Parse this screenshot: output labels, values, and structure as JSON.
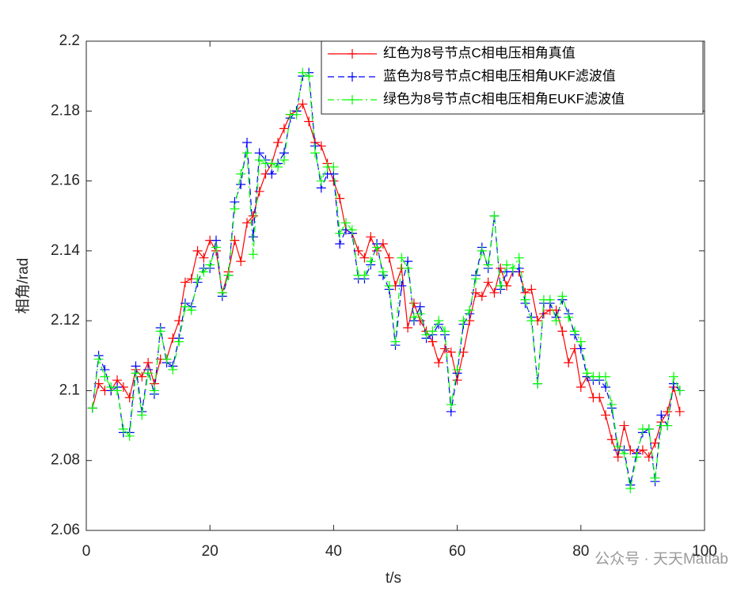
{
  "chart_data": {
    "type": "line",
    "xlabel": "t/s",
    "ylabel": "相角/rad",
    "xlim": [
      0,
      100
    ],
    "xticks": [
      0,
      20,
      40,
      60,
      80,
      100
    ],
    "ylim": [
      2.06,
      2.2
    ],
    "yticks": [
      2.06,
      2.08,
      2.1,
      2.12,
      2.14,
      2.16,
      2.18,
      2.2
    ],
    "grid": false,
    "legend": "northeast",
    "watermark": "公众号 · 天天Matlab",
    "x": [
      1,
      2,
      3,
      4,
      5,
      6,
      7,
      8,
      9,
      10,
      11,
      12,
      13,
      14,
      15,
      16,
      17,
      18,
      19,
      20,
      21,
      22,
      23,
      24,
      25,
      26,
      27,
      28,
      29,
      30,
      31,
      32,
      33,
      34,
      35,
      36,
      37,
      38,
      39,
      40,
      41,
      42,
      43,
      44,
      45,
      46,
      47,
      48,
      49,
      50,
      51,
      52,
      53,
      54,
      55,
      56,
      57,
      58,
      59,
      60,
      61,
      62,
      63,
      64,
      65,
      66,
      67,
      68,
      69,
      70,
      71,
      72,
      73,
      74,
      75,
      76,
      77,
      78,
      79,
      80,
      81,
      82,
      83,
      84,
      85,
      86,
      87,
      88,
      89,
      90,
      91,
      92,
      93,
      94,
      95,
      96
    ],
    "series": [
      {
        "name": "红色为8号节点C相电压相角真值",
        "color": "#ff0000",
        "style": "-",
        "marker": "+",
        "values": [
          2.095,
          2.102,
          2.1,
          2.1,
          2.103,
          2.101,
          2.098,
          2.106,
          2.104,
          2.108,
          2.102,
          2.109,
          2.109,
          2.115,
          2.12,
          2.131,
          2.132,
          2.14,
          2.138,
          2.143,
          2.14,
          2.128,
          2.134,
          2.143,
          2.137,
          2.148,
          2.15,
          2.157,
          2.162,
          2.165,
          2.171,
          2.175,
          2.179,
          2.18,
          2.182,
          2.177,
          2.171,
          2.17,
          2.165,
          2.16,
          2.155,
          2.146,
          2.145,
          2.14,
          2.138,
          2.144,
          2.14,
          2.142,
          2.138,
          2.13,
          2.135,
          2.118,
          2.125,
          2.12,
          2.117,
          2.114,
          2.108,
          2.112,
          2.111,
          2.103,
          2.111,
          2.12,
          2.128,
          2.127,
          2.131,
          2.128,
          2.135,
          2.13,
          2.134,
          2.134,
          2.128,
          2.129,
          2.12,
          2.122,
          2.123,
          2.123,
          2.117,
          2.108,
          2.112,
          2.101,
          2.104,
          2.098,
          2.098,
          2.093,
          2.086,
          2.081,
          2.09,
          2.083,
          2.082,
          2.083,
          2.081,
          2.085,
          2.091,
          2.094,
          2.101,
          2.094
        ]
      },
      {
        "name": "蓝色为8号节点C相电压相角UKF滤波值",
        "color": "#0000ff",
        "style": "--",
        "marker": "+",
        "values": [
          2.095,
          2.11,
          2.106,
          2.1,
          2.101,
          2.088,
          2.088,
          2.107,
          2.094,
          2.106,
          2.099,
          2.118,
          2.108,
          2.107,
          2.115,
          2.125,
          2.124,
          2.131,
          2.135,
          2.135,
          2.143,
          2.127,
          2.133,
          2.154,
          2.159,
          2.171,
          2.144,
          2.168,
          2.166,
          2.162,
          2.165,
          2.168,
          2.178,
          2.18,
          2.19,
          2.191,
          2.17,
          2.158,
          2.162,
          2.162,
          2.142,
          2.146,
          2.145,
          2.132,
          2.132,
          2.136,
          2.142,
          2.133,
          2.129,
          2.113,
          2.13,
          2.137,
          2.12,
          2.124,
          2.115,
          2.116,
          2.119,
          2.116,
          2.094,
          2.105,
          2.119,
          2.122,
          2.133,
          2.141,
          2.135,
          2.15,
          2.129,
          2.134,
          2.134,
          2.135,
          2.125,
          2.121,
          2.102,
          2.125,
          2.125,
          2.121,
          2.126,
          2.122,
          2.116,
          2.112,
          2.104,
          2.103,
          2.103,
          2.101,
          2.095,
          2.083,
          2.083,
          2.073,
          2.082,
          2.088,
          2.089,
          2.074,
          2.093,
          2.09,
          2.102,
          2.1
        ]
      },
      {
        "name": "绿色为8号节点C相电压相角EUKF滤波值",
        "color": "#00ff00",
        "style": "-.",
        "marker": "+",
        "values": [
          2.095,
          2.109,
          2.104,
          2.101,
          2.1,
          2.089,
          2.087,
          2.105,
          2.093,
          2.105,
          2.1,
          2.117,
          2.109,
          2.106,
          2.114,
          2.124,
          2.123,
          2.132,
          2.134,
          2.136,
          2.141,
          2.128,
          2.133,
          2.152,
          2.162,
          2.168,
          2.139,
          2.166,
          2.165,
          2.165,
          2.164,
          2.166,
          2.179,
          2.179,
          2.191,
          2.19,
          2.168,
          2.16,
          2.164,
          2.164,
          2.145,
          2.148,
          2.146,
          2.133,
          2.133,
          2.137,
          2.141,
          2.134,
          2.13,
          2.114,
          2.138,
          2.135,
          2.121,
          2.122,
          2.116,
          2.117,
          2.12,
          2.117,
          2.096,
          2.106,
          2.12,
          2.123,
          2.132,
          2.14,
          2.136,
          2.15,
          2.13,
          2.136,
          2.135,
          2.138,
          2.126,
          2.12,
          2.102,
          2.126,
          2.126,
          2.12,
          2.127,
          2.121,
          2.117,
          2.114,
          2.105,
          2.104,
          2.104,
          2.104,
          2.096,
          2.084,
          2.082,
          2.072,
          2.081,
          2.089,
          2.089,
          2.075,
          2.09,
          2.09,
          2.104,
          2.1
        ]
      }
    ]
  }
}
